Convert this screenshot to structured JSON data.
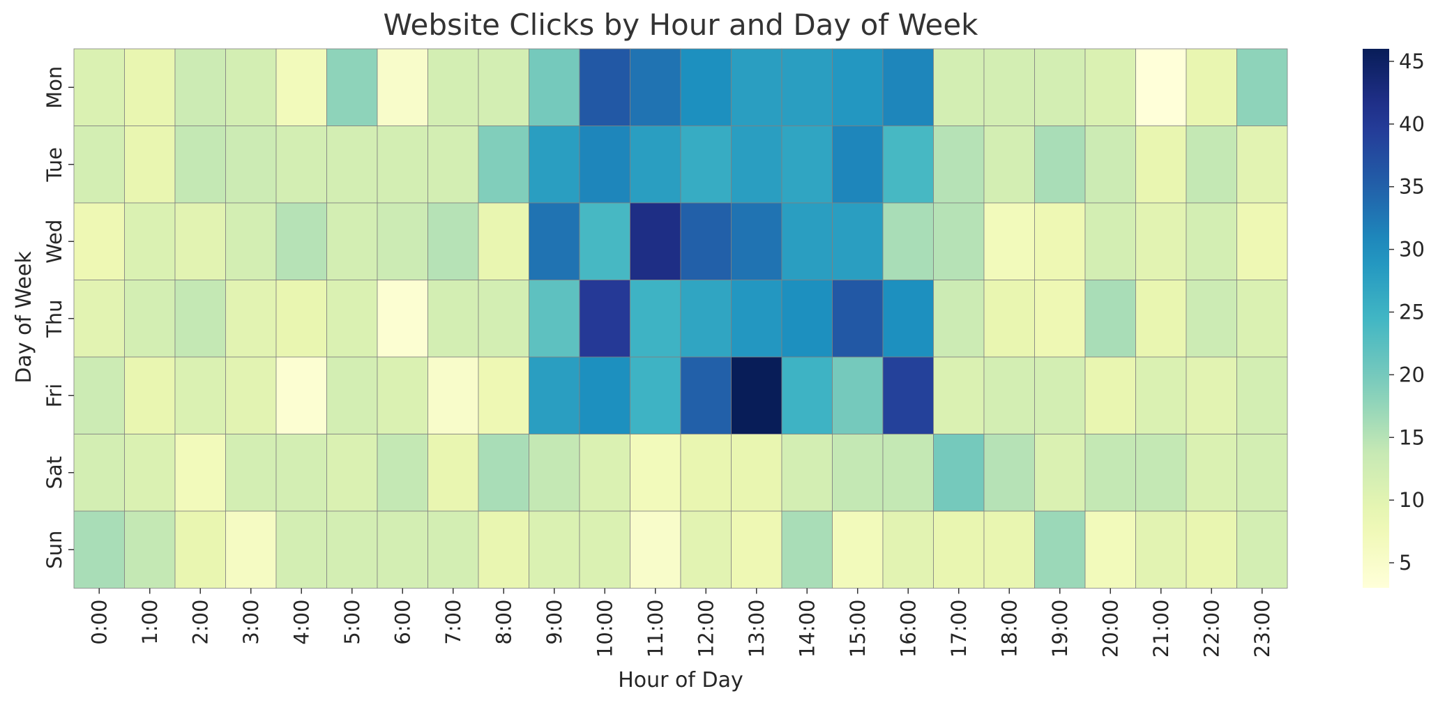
{
  "chart_data": {
    "type": "heatmap",
    "title": "Website Clicks by Hour and Day of Week",
    "xlabel": "Hour of Day",
    "ylabel": "Day of Week",
    "x": [
      "0:00",
      "1:00",
      "2:00",
      "3:00",
      "4:00",
      "5:00",
      "6:00",
      "7:00",
      "8:00",
      "9:00",
      "10:00",
      "11:00",
      "12:00",
      "13:00",
      "14:00",
      "15:00",
      "16:00",
      "17:00",
      "18:00",
      "19:00",
      "20:00",
      "21:00",
      "22:00",
      "23:00"
    ],
    "y": [
      "Mon",
      "Tue",
      "Wed",
      "Thu",
      "Fri",
      "Sat",
      "Sun"
    ],
    "values": [
      [
        11,
        9,
        13,
        12,
        7,
        18,
        5,
        12,
        12,
        20,
        36,
        33,
        30,
        28,
        28,
        29,
        31,
        12,
        12,
        12,
        11,
        3,
        9,
        18
      ],
      [
        12,
        9,
        14,
        13,
        12,
        12,
        12,
        12,
        19,
        28,
        31,
        28,
        26,
        28,
        27,
        31,
        24,
        15,
        12,
        16,
        13,
        9,
        14,
        10
      ],
      [
        8,
        11,
        10,
        12,
        15,
        12,
        13,
        15,
        9,
        33,
        24,
        42,
        35,
        33,
        28,
        28,
        16,
        15,
        7,
        8,
        12,
        10,
        12,
        8
      ],
      [
        10,
        12,
        14,
        10,
        9,
        11,
        4,
        12,
        12,
        22,
        40,
        25,
        27,
        29,
        30,
        36,
        30,
        13,
        9,
        8,
        16,
        9,
        13,
        11
      ],
      [
        13,
        9,
        11,
        10,
        4,
        12,
        11,
        5,
        8,
        28,
        30,
        25,
        35,
        46,
        25,
        20,
        39,
        11,
        12,
        12,
        9,
        11,
        10,
        12
      ],
      [
        12,
        11,
        7,
        12,
        12,
        11,
        14,
        9,
        16,
        14,
        11,
        7,
        9,
        9,
        12,
        14,
        14,
        20,
        15,
        11,
        14,
        14,
        11,
        12
      ],
      [
        16,
        14,
        9,
        6,
        12,
        12,
        12,
        12,
        9,
        11,
        11,
        5,
        10,
        8,
        16,
        7,
        10,
        9,
        9,
        17,
        7,
        10,
        9,
        12
      ]
    ],
    "colormap": "YlGnBu",
    "colorbar": {
      "range": [
        3,
        46
      ],
      "ticks": [
        5,
        10,
        15,
        20,
        25,
        30,
        35,
        40,
        45
      ]
    },
    "cell_border_color": "#808080",
    "grid": false,
    "legend": "colorbar-right"
  }
}
